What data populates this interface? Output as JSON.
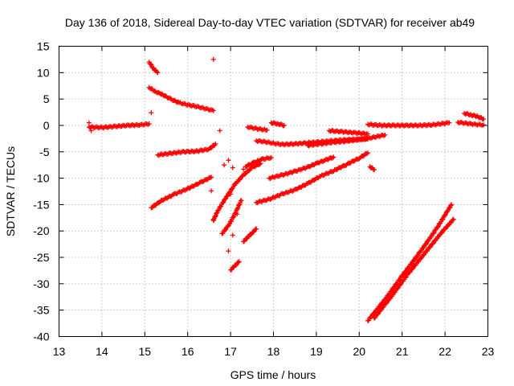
{
  "chart_data": {
    "type": "scatter",
    "title": "Day 136 of 2018, Sidereal Day-to-day VTEC variation (SDTVAR) for receiver ab49",
    "xlabel": "GPS time / hours",
    "ylabel": "SDTVAR / TECUs",
    "xlim": [
      13,
      23
    ],
    "ylim": [
      -40,
      15
    ],
    "xticks": [
      "13",
      "14",
      "15",
      "16",
      "17",
      "18",
      "19",
      "20",
      "21",
      "22",
      "23"
    ],
    "yticks": [
      "15",
      "10",
      "5",
      "0",
      "-5",
      "-10",
      "-15",
      "-20",
      "-25",
      "-30",
      "-35",
      "-40"
    ],
    "grid": true,
    "legend": "none",
    "marker": "plus",
    "color": "#ff0000",
    "tracks": [
      {
        "x": [
          13.7,
          14.0,
          14.3,
          14.6,
          14.9,
          15.1
        ],
        "y": [
          -0.3,
          -0.4,
          -0.2,
          0.0,
          0.1,
          0.3
        ]
      },
      {
        "x": [
          15.1,
          15.25,
          15.4,
          15.6,
          15.8,
          16.0,
          16.2,
          16.4,
          16.6
        ],
        "y": [
          7.2,
          6.4,
          5.9,
          5.0,
          4.3,
          3.9,
          3.6,
          3.2,
          2.8
        ]
      },
      {
        "x": [
          15.1,
          15.2,
          15.3
        ],
        "y": [
          12.0,
          10.8,
          10.0
        ]
      },
      {
        "x": [
          15.3,
          15.6,
          15.9,
          16.2,
          16.5,
          16.65
        ],
        "y": [
          -5.6,
          -5.3,
          -5.0,
          -4.9,
          -4.5,
          -3.5
        ]
      },
      {
        "x": [
          15.15,
          15.4,
          15.7,
          16.0,
          16.3,
          16.55
        ],
        "y": [
          -15.6,
          -14.2,
          -13.0,
          -12.0,
          -10.8,
          -9.8
        ]
      },
      {
        "x": [
          16.6,
          16.7,
          16.9,
          17.1,
          17.3,
          17.5,
          17.7
        ],
        "y": [
          -18.0,
          -16.2,
          -13.6,
          -11.2,
          -9.4,
          -8.0,
          -7.2
        ]
      },
      {
        "x": [
          16.8,
          16.95,
          17.1,
          17.25
        ],
        "y": [
          -20.5,
          -19.0,
          -16.8,
          -14.2
        ]
      },
      {
        "x": [
          17.0,
          17.1,
          17.2
        ],
        "y": [
          -27.4,
          -26.6,
          -25.8
        ]
      },
      {
        "x": [
          17.3,
          17.45,
          17.6
        ],
        "y": [
          -22.0,
          -20.8,
          -19.6
        ]
      },
      {
        "x": [
          17.35,
          17.55,
          17.75,
          17.95
        ],
        "y": [
          -7.8,
          -7.0,
          -6.4,
          -6.1
        ]
      },
      {
        "x": [
          17.4,
          17.6,
          17.85
        ],
        "y": [
          -0.3,
          -0.6,
          -0.9
        ]
      },
      {
        "x": [
          17.6,
          17.8,
          18.0,
          18.2,
          18.5,
          18.8,
          19.1,
          19.4,
          19.7,
          20.0,
          20.2
        ],
        "y": [
          -2.9,
          -3.1,
          -3.4,
          -3.6,
          -3.5,
          -3.3,
          -3.1,
          -2.9,
          -2.7,
          -2.6,
          -2.6
        ]
      },
      {
        "x": [
          17.9,
          18.2,
          18.5,
          18.8,
          19.0,
          19.2,
          19.4
        ],
        "y": [
          -10.0,
          -9.4,
          -8.7,
          -7.9,
          -7.2,
          -6.6,
          -6.0
        ]
      },
      {
        "x": [
          17.6,
          17.9,
          18.2,
          18.5,
          18.8,
          19.1,
          19.4,
          19.7,
          20.0,
          20.2
        ],
        "y": [
          -14.6,
          -14.0,
          -13.0,
          -12.2,
          -11.0,
          -9.6,
          -8.6,
          -7.4,
          -6.2,
          -5.2
        ]
      },
      {
        "x": [
          17.95,
          18.1,
          18.25
        ],
        "y": [
          0.5,
          0.3,
          0.0
        ]
      },
      {
        "x": [
          18.8,
          19.1,
          19.4,
          19.7,
          20.0,
          20.3,
          20.6
        ],
        "y": [
          -3.8,
          -3.5,
          -3.2,
          -3.0,
          -2.7,
          -2.3,
          -1.8
        ]
      },
      {
        "x": [
          19.3,
          19.6,
          19.9,
          20.2
        ],
        "y": [
          -1.0,
          -1.2,
          -1.4,
          -1.6
        ]
      },
      {
        "x": [
          20.2,
          20.5,
          20.8,
          21.1,
          21.4,
          21.7,
          21.9,
          22.1
        ],
        "y": [
          0.2,
          0.0,
          0.0,
          0.0,
          0.0,
          0.1,
          0.3,
          0.5
        ]
      },
      {
        "x": [
          20.25,
          20.35
        ],
        "y": [
          -7.8,
          -8.4
        ]
      },
      {
        "x": [
          20.2,
          20.6,
          21.0,
          21.4,
          21.8,
          22.15
        ],
        "y": [
          -37.0,
          -33.0,
          -28.5,
          -24.2,
          -19.6,
          -15.0
        ]
      },
      {
        "x": [
          20.35,
          20.75,
          21.15,
          21.55,
          21.95,
          22.2
        ],
        "y": [
          -36.5,
          -32.4,
          -28.0,
          -24.0,
          -20.0,
          -17.8
        ]
      },
      {
        "x": [
          22.3,
          22.5,
          22.7,
          22.9
        ],
        "y": [
          0.6,
          0.4,
          0.2,
          0.1
        ]
      },
      {
        "x": [
          22.45,
          22.6,
          22.75,
          22.9
        ],
        "y": [
          2.3,
          2.0,
          1.7,
          1.2
        ]
      }
    ],
    "points": [
      {
        "x": 16.6,
        "y": 12.5
      },
      {
        "x": 15.15,
        "y": 2.4
      },
      {
        "x": 16.75,
        "y": -1.0
      },
      {
        "x": 16.95,
        "y": -6.6
      },
      {
        "x": 16.85,
        "y": -7.5
      },
      {
        "x": 17.05,
        "y": -8.0
      },
      {
        "x": 17.3,
        "y": -8.3
      },
      {
        "x": 16.55,
        "y": -12.4
      },
      {
        "x": 17.0,
        "y": -13.0
      },
      {
        "x": 17.15,
        "y": -16.8
      },
      {
        "x": 16.6,
        "y": -17.8
      },
      {
        "x": 17.05,
        "y": -20.8
      },
      {
        "x": 16.95,
        "y": -23.8
      },
      {
        "x": 13.75,
        "y": -1.0
      },
      {
        "x": 13.7,
        "y": 0.5
      }
    ]
  }
}
